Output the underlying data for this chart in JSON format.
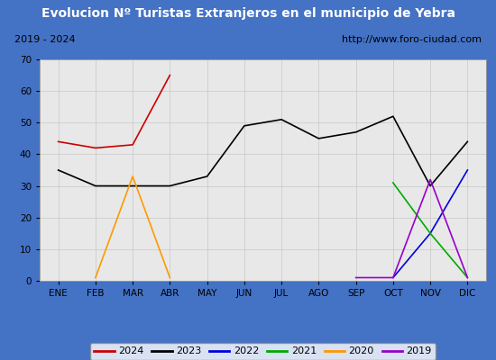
{
  "title": "Evolucion Nº Turistas Extranjeros en el municipio de Yebra",
  "subtitle_left": "2019 - 2024",
  "subtitle_right": "http://www.foro-ciudad.com",
  "title_bg_color": "#4472c4",
  "title_text_color": "#ffffff",
  "months": [
    "ENE",
    "FEB",
    "MAR",
    "ABR",
    "MAY",
    "JUN",
    "JUL",
    "AGO",
    "SEP",
    "OCT",
    "NOV",
    "DIC"
  ],
  "ylim": [
    0,
    70
  ],
  "yticks": [
    0,
    10,
    20,
    30,
    40,
    50,
    60,
    70
  ],
  "series": {
    "2024": {
      "color": "#cc0000",
      "data": [
        44,
        42,
        43,
        65,
        null,
        null,
        null,
        null,
        null,
        null,
        null,
        null
      ]
    },
    "2023": {
      "color": "#000000",
      "data": [
        35,
        30,
        30,
        30,
        33,
        49,
        51,
        45,
        47,
        52,
        30,
        44
      ]
    },
    "2022": {
      "color": "#0000dd",
      "data": [
        null,
        null,
        null,
        null,
        null,
        null,
        null,
        null,
        null,
        1,
        15,
        35
      ]
    },
    "2021": {
      "color": "#00aa00",
      "data": [
        null,
        null,
        null,
        null,
        null,
        null,
        null,
        null,
        null,
        31,
        15,
        1
      ]
    },
    "2020": {
      "color": "#ff9900",
      "data": [
        null,
        1,
        33,
        1,
        null,
        null,
        null,
        null,
        null,
        null,
        null,
        null
      ]
    },
    "2019": {
      "color": "#9900cc",
      "data": [
        null,
        null,
        null,
        null,
        null,
        null,
        null,
        null,
        1,
        1,
        32,
        1
      ]
    }
  },
  "legend_order": [
    "2024",
    "2023",
    "2022",
    "2021",
    "2020",
    "2019"
  ],
  "outer_bg_color": "#4472c4",
  "inner_bg_color": "#f0f0f0",
  "plot_bg_color": "#e8e8e8",
  "grid_color": "#cccccc",
  "subtitle_bg": "#ffffff",
  "subtitle_border": "#888888"
}
